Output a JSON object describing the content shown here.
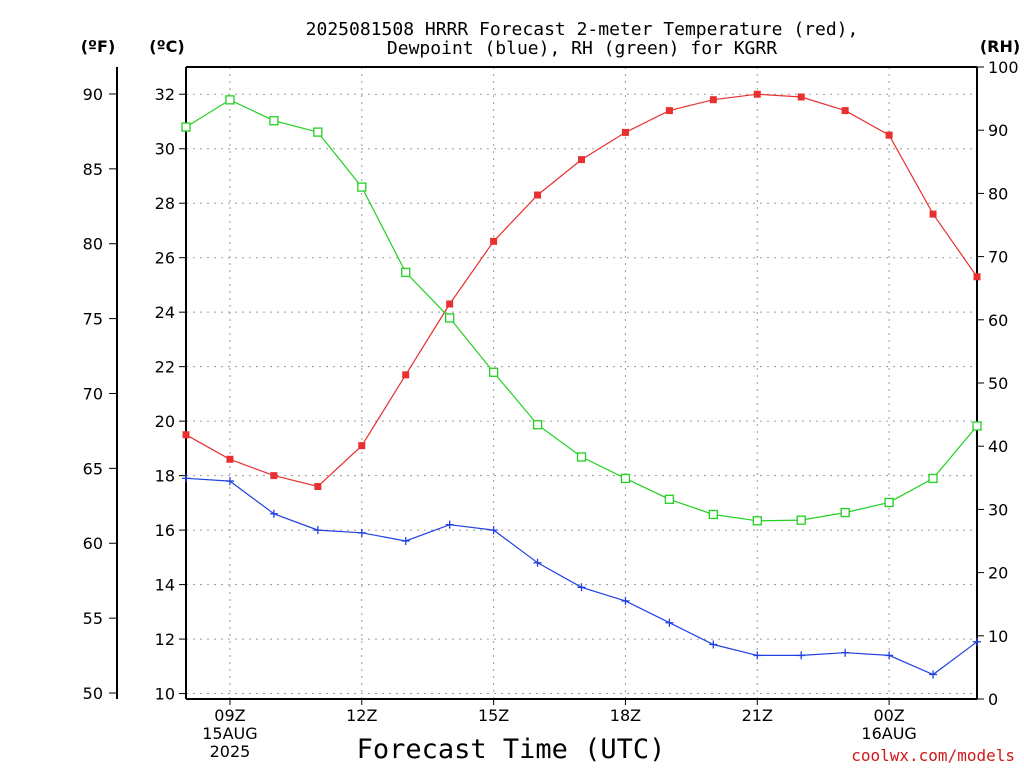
{
  "chart_data": {
    "type": "line",
    "title_line1": "2025081508 HRRR Forecast 2-meter Temperature (red),",
    "title_line2": "Dewpoint (blue), RH (green) for KGRR",
    "xlabel": "Forecast Time (UTC)",
    "credit": "coolwx.com/models",
    "axes": {
      "fahrenheit": {
        "unit_label": "(ºF)",
        "ticks": [
          "50",
          "55",
          "60",
          "65",
          "70",
          "75",
          "80",
          "85",
          "90"
        ],
        "range": [
          49.6,
          91.8
        ]
      },
      "celsius": {
        "unit_label": "(ºC)",
        "ticks": [
          "10",
          "12",
          "14",
          "16",
          "18",
          "20",
          "22",
          "24",
          "26",
          "28",
          "30",
          "32"
        ],
        "range": [
          9.8,
          33.0
        ]
      },
      "rh": {
        "unit_label": "(RH)",
        "ticks": [
          "0",
          "10",
          "20",
          "30",
          "40",
          "50",
          "60",
          "70",
          "80",
          "90",
          "100"
        ],
        "range": [
          0,
          100
        ]
      }
    },
    "x": [
      "08Z",
      "09Z",
      "10Z",
      "11Z",
      "12Z",
      "13Z",
      "14Z",
      "15Z",
      "16Z",
      "17Z",
      "18Z",
      "19Z",
      "20Z",
      "21Z",
      "22Z",
      "23Z",
      "00Z",
      "01Z",
      "02Z"
    ],
    "x_tick_labels": [
      {
        "hour": 1,
        "lines": [
          "09Z",
          "15AUG",
          "2025"
        ]
      },
      {
        "hour": 4,
        "lines": [
          "12Z"
        ]
      },
      {
        "hour": 7,
        "lines": [
          "15Z"
        ]
      },
      {
        "hour": 10,
        "lines": [
          "18Z"
        ]
      },
      {
        "hour": 13,
        "lines": [
          "21Z"
        ]
      },
      {
        "hour": 16,
        "lines": [
          "00Z",
          "16AUG"
        ]
      }
    ],
    "x_range": [
      0,
      18
    ],
    "grid": true,
    "series": [
      {
        "name": "2-meter Temperature",
        "color": "#e83030",
        "marker": "filled-square",
        "axis": "celsius",
        "values": [
          19.5,
          18.6,
          18.0,
          17.6,
          19.1,
          21.7,
          24.3,
          26.6,
          28.3,
          29.6,
          30.6,
          31.4,
          31.8,
          32.0,
          31.9,
          31.4,
          30.5,
          27.6,
          25.3
        ]
      },
      {
        "name": "Dewpoint",
        "color": "#2040e0",
        "marker": "plus",
        "axis": "celsius",
        "values": [
          17.9,
          17.8,
          16.6,
          16.0,
          15.9,
          15.6,
          16.2,
          16.0,
          14.8,
          13.9,
          13.4,
          12.6,
          11.8,
          11.4,
          11.4,
          11.5,
          11.4,
          10.7,
          11.9
        ]
      },
      {
        "name": "RH",
        "color": "#22d022",
        "marker": "open-square",
        "axis": "rh",
        "values": [
          90.5,
          94.8,
          91.5,
          89.7,
          81.0,
          67.5,
          60.3,
          51.7,
          43.4,
          38.3,
          34.9,
          31.6,
          29.2,
          28.2,
          28.3,
          29.5,
          31.1,
          34.9,
          43.2
        ]
      }
    ]
  }
}
